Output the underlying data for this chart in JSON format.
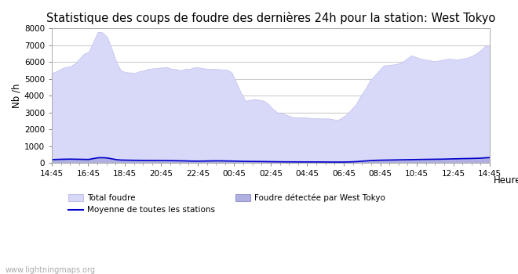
{
  "title": "Statistique des coups de foudre des dernières 24h pour la station: West Tokyo",
  "xlabel": "Heure",
  "ylabel": "Nb /h",
  "xlabels": [
    "14:45",
    "16:45",
    "18:45",
    "20:45",
    "22:45",
    "00:45",
    "02:45",
    "04:45",
    "06:45",
    "08:45",
    "10:45",
    "12:45",
    "14:45"
  ],
  "ylim": [
    0,
    8000
  ],
  "yticks": [
    0,
    1000,
    2000,
    3000,
    4000,
    5000,
    6000,
    7000,
    8000
  ],
  "background_color": "#ffffff",
  "plot_bg_color": "#ffffff",
  "grid_color": "#cccccc",
  "fill_total_color": "#d8d8f8",
  "fill_total_edge": "#c0c0ee",
  "fill_local_color": "#b0b0e0",
  "fill_local_edge": "#9898d0",
  "line_color": "#0000cc",
  "watermark": "www.lightningmaps.org",
  "legend_total": "Total foudre",
  "legend_moyenne": "Moyenne de toutes les stations",
  "legend_local": "Foudre détectée par West Tokyo",
  "total_foudre": [
    5350,
    5450,
    5600,
    5700,
    5750,
    5900,
    6200,
    6500,
    6600,
    7200,
    7800,
    7760,
    7500,
    6800,
    6000,
    5500,
    5400,
    5380,
    5350,
    5450,
    5500,
    5600,
    5620,
    5650,
    5680,
    5700,
    5600,
    5580,
    5500,
    5600,
    5600,
    5700,
    5680,
    5620,
    5600,
    5600,
    5580,
    5560,
    5540,
    5400,
    4800,
    4200,
    3700,
    3750,
    3800,
    3750,
    3700,
    3500,
    3200,
    3000,
    2950,
    2850,
    2750,
    2700,
    2700,
    2700,
    2680,
    2660,
    2650,
    2640,
    2650,
    2600,
    2550,
    2700,
    2900,
    3200,
    3500,
    4000,
    4400,
    4900,
    5200,
    5500,
    5800,
    5820,
    5850,
    5900,
    6000,
    6200,
    6400,
    6300,
    6200,
    6150,
    6100,
    6050,
    6100,
    6150,
    6200,
    6180,
    6150,
    6200,
    6250,
    6350,
    6500,
    6700,
    6950,
    7000
  ],
  "local_foudre": [
    200,
    210,
    220,
    225,
    230,
    225,
    220,
    215,
    210,
    260,
    310,
    315,
    300,
    250,
    200,
    175,
    170,
    165,
    160,
    158,
    155,
    153,
    150,
    150,
    148,
    145,
    140,
    135,
    130,
    125,
    115,
    112,
    110,
    115,
    120,
    125,
    128,
    125,
    120,
    115,
    110,
    100,
    95,
    92,
    90,
    88,
    85,
    80,
    76,
    73,
    70,
    68,
    66,
    65,
    64,
    64,
    63,
    62,
    62,
    60,
    58,
    57,
    55,
    57,
    60,
    68,
    80,
    100,
    120,
    140,
    155,
    165,
    170,
    175,
    180,
    185,
    190,
    195,
    200,
    205,
    210,
    215,
    218,
    222,
    225,
    230,
    238,
    245,
    252,
    260,
    265,
    270,
    278,
    285,
    308,
    320
  ],
  "moyenne": [
    200,
    210,
    220,
    225,
    230,
    225,
    220,
    215,
    210,
    260,
    310,
    315,
    300,
    250,
    200,
    175,
    170,
    165,
    160,
    158,
    155,
    153,
    150,
    150,
    148,
    145,
    140,
    135,
    130,
    125,
    115,
    112,
    110,
    115,
    120,
    125,
    128,
    125,
    120,
    115,
    110,
    100,
    95,
    92,
    90,
    88,
    85,
    80,
    76,
    73,
    70,
    68,
    66,
    65,
    64,
    64,
    63,
    62,
    62,
    60,
    58,
    57,
    55,
    57,
    60,
    68,
    80,
    100,
    120,
    140,
    155,
    165,
    170,
    175,
    180,
    185,
    190,
    195,
    200,
    205,
    210,
    215,
    218,
    222,
    225,
    230,
    238,
    245,
    252,
    260,
    265,
    270,
    278,
    285,
    308,
    320
  ],
  "title_fontsize": 10.5,
  "axis_fontsize": 8.5,
  "tick_fontsize": 7.5,
  "watermark_fontsize": 7
}
